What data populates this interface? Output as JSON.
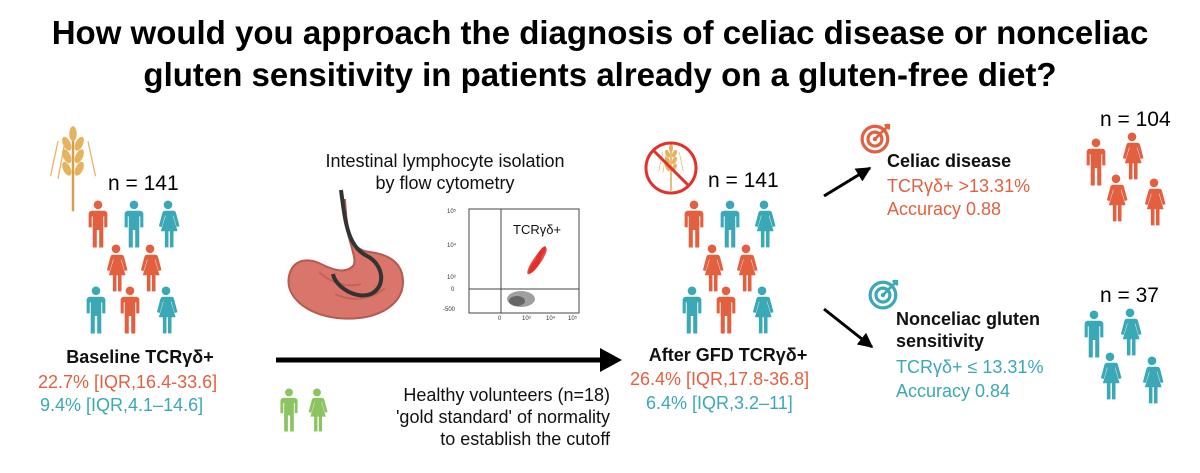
{
  "title": {
    "line1": "How would you approach the diagnosis of celiac disease or nonceliac",
    "line2": "gluten sensitivity in patients already on a gluten-free diet?"
  },
  "baseline": {
    "n": "n = 141",
    "label": "Baseline TCRγδ+",
    "orange_stat": "22.7% [IQR,16.4-33.6]",
    "teal_stat": "9.4% [IQR,4.1–14.6]"
  },
  "isolation": {
    "line1": "Intestinal lymphocyte isolation",
    "line2": "by flow cytometry",
    "plot_label": "TCRγδ+",
    "y_ticks": [
      "10⁵",
      "10⁴",
      "10³",
      "0",
      "-500"
    ],
    "x_ticks": [
      "0",
      "10³",
      "10⁴",
      "10⁵"
    ]
  },
  "healthy": {
    "line1": "Healthy volunteers (n=18)",
    "line2": "'gold standard' of normality",
    "line3": "to establish the cutoff"
  },
  "after_gfd": {
    "n": "n = 141",
    "label": "After GFD TCRγδ+",
    "orange_stat": "26.4% [IQR,17.8-36.8]",
    "teal_stat": "6.4% [IQR,3.2–11]"
  },
  "celiac": {
    "n": "n = 104",
    "label": "Celiac disease",
    "stat": "TCRγδ+ >13.31%",
    "accuracy": "Accuracy 0.88"
  },
  "ncgs": {
    "n": "n = 37",
    "label_line1": "Nonceliac gluten",
    "label_line2": "sensitivity",
    "stat": "TCRγδ+ ≤ 13.31%",
    "accuracy": "Accuracy 0.84"
  },
  "colors": {
    "orange": "#e2603f",
    "teal": "#3aa8b5",
    "green": "#8cc461",
    "wheat": "#e6b25e",
    "stomach": "#d9756a"
  }
}
